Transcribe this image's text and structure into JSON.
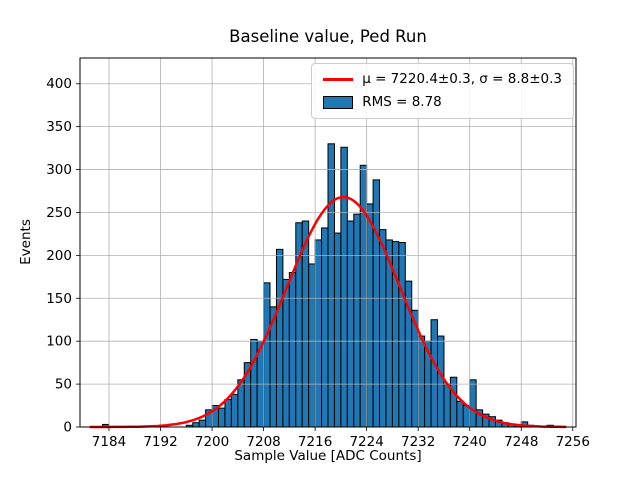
{
  "chart_data": {
    "type": "bar",
    "style": "histogram",
    "title": "Baseline value, Ped Run",
    "xlabel": "Sample Value [ADC Counts]",
    "ylabel": "Events",
    "xlim": [
      7179.5,
      7256.5
    ],
    "ylim": [
      0,
      430
    ],
    "xticks": [
      7184,
      7192,
      7200,
      7208,
      7216,
      7224,
      7232,
      7240,
      7248,
      7256
    ],
    "yticks": [
      0,
      50,
      100,
      150,
      200,
      250,
      300,
      350,
      400
    ],
    "grid": true,
    "grid_color": "#b0b0b0",
    "bar_color": "#1f77b4",
    "bar_edge_color": "#000000",
    "bin_width": 1,
    "bin_lefts": [
      7183,
      7196,
      7197,
      7198,
      7199,
      7200,
      7201,
      7202,
      7203,
      7204,
      7205,
      7206,
      7207,
      7208,
      7209,
      7210,
      7211,
      7212,
      7213,
      7214,
      7215,
      7216,
      7217,
      7218,
      7219,
      7220,
      7221,
      7222,
      7223,
      7224,
      7225,
      7226,
      7227,
      7228,
      7229,
      7230,
      7231,
      7232,
      7233,
      7234,
      7235,
      7236,
      7237,
      7238,
      7239,
      7240,
      7241,
      7242,
      7243,
      7244,
      7245,
      7246,
      7247,
      7248,
      7249,
      7252
    ],
    "counts": [
      3,
      2,
      5,
      8,
      20,
      25,
      22,
      32,
      38,
      55,
      75,
      102,
      100,
      168,
      140,
      207,
      172,
      180,
      238,
      240,
      190,
      218,
      232,
      330,
      226,
      326,
      240,
      248,
      305,
      260,
      288,
      230,
      218,
      216,
      215,
      170,
      136,
      106,
      100,
      125,
      106,
      50,
      58,
      30,
      25,
      55,
      20,
      15,
      12,
      8,
      5,
      3,
      2,
      6,
      2,
      2
    ],
    "fit": {
      "type": "gaussian",
      "mu": 7220.4,
      "sigma": 8.8,
      "amplitude": 268,
      "range": [
        7181,
        7255
      ],
      "color": "#ff0000",
      "linewidth": 2.5
    },
    "legend": {
      "position": "upper-right",
      "entries": [
        {
          "swatch": "line",
          "color": "#ff0000",
          "label": "μ = 7220.4±0.3, σ = 8.8±0.3"
        },
        {
          "swatch": "patch",
          "color": "#1f77b4",
          "label": "RMS = 8.78"
        }
      ]
    }
  }
}
